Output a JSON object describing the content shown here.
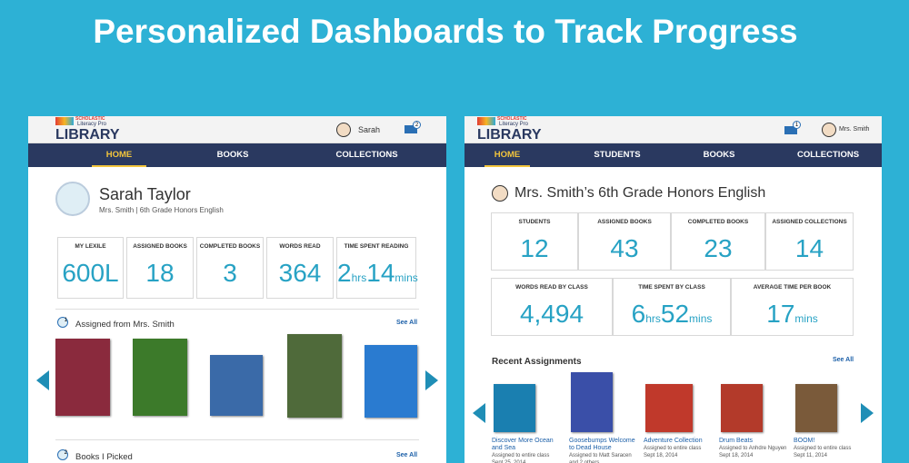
{
  "header": {
    "title": "Personalized Dashboards to Track Progress"
  },
  "student": {
    "logo": {
      "brand": "SCHOLASTIC",
      "product": "Literacy Pro",
      "name": "LIBRARY"
    },
    "user": "Sarah",
    "mail_count": "2",
    "nav": [
      "HOME",
      "BOOKS",
      "COLLECTIONS"
    ],
    "profile": {
      "name": "Sarah Taylor",
      "subtitle": "Mrs. Smith | 6th Grade Honors English"
    },
    "stats": [
      {
        "label": "MY LEXILE",
        "value": [
          "600L"
        ]
      },
      {
        "label": "ASSIGNED BOOKS",
        "value": [
          "18"
        ]
      },
      {
        "label": "COMPLETED BOOKS",
        "value": [
          "3"
        ]
      },
      {
        "label": "WORDS READ",
        "value": [
          "364"
        ]
      },
      {
        "label": "TIME SPENT READING",
        "value": [
          "2",
          "hrs",
          "14",
          "mins"
        ]
      }
    ],
    "sections": [
      {
        "badge": "1",
        "title": "Assigned from Mrs. Smith",
        "link": "See All"
      },
      {
        "badge": "2",
        "title": "Books I Picked",
        "link": "See All"
      }
    ]
  },
  "teacher": {
    "logo": {
      "brand": "SCHOLASTIC",
      "product": "Literacy Pro",
      "name": "LIBRARY"
    },
    "user": "Mrs. Smith",
    "mail_count": "1",
    "nav": [
      "HOME",
      "STUDENTS",
      "BOOKS",
      "COLLECTIONS"
    ],
    "class_title": "Mrs. Smith’s 6th Grade Honors English",
    "stats_row1": [
      {
        "label": "STUDENTS",
        "value": [
          "12"
        ]
      },
      {
        "label": "ASSIGNED BOOKS",
        "value": [
          "43"
        ]
      },
      {
        "label": "COMPLETED BOOKS",
        "value": [
          "23"
        ]
      },
      {
        "label": "ASSIGNED COLLECTIONS",
        "value": [
          "14"
        ]
      }
    ],
    "stats_row2": [
      {
        "label": "WORDS READ BY CLASS",
        "value": [
          "4,494"
        ]
      },
      {
        "label": "TIME SPENT BY CLASS",
        "value": [
          "6",
          "hrs",
          "52",
          "mins"
        ]
      },
      {
        "label": "AVERAGE TIME PER BOOK",
        "value": [
          "17",
          "mins"
        ]
      }
    ],
    "section": {
      "title": "Recent Assignments",
      "link": "See All"
    },
    "assignments": [
      {
        "title": "Discover More Ocean and Sea",
        "assigned": "Assigned to entire class",
        "date": "Sept 25, 2014"
      },
      {
        "title": "Goosebumps Welcome to Dead House",
        "assigned": "Assigned to Matt Saracen and 2 others",
        "date": "Sept 25, 2014"
      },
      {
        "title": "Adventure Collection",
        "assigned": "Assigned to entire class",
        "date": "Sept 18, 2014"
      },
      {
        "title": "Drum Beats",
        "assigned": "Assigned to Anhdre Nguyen",
        "date": "Sept 18, 2014"
      },
      {
        "title": "BOOM!",
        "assigned": "Assigned to entire class",
        "date": "Sept 11, 2014"
      }
    ]
  }
}
